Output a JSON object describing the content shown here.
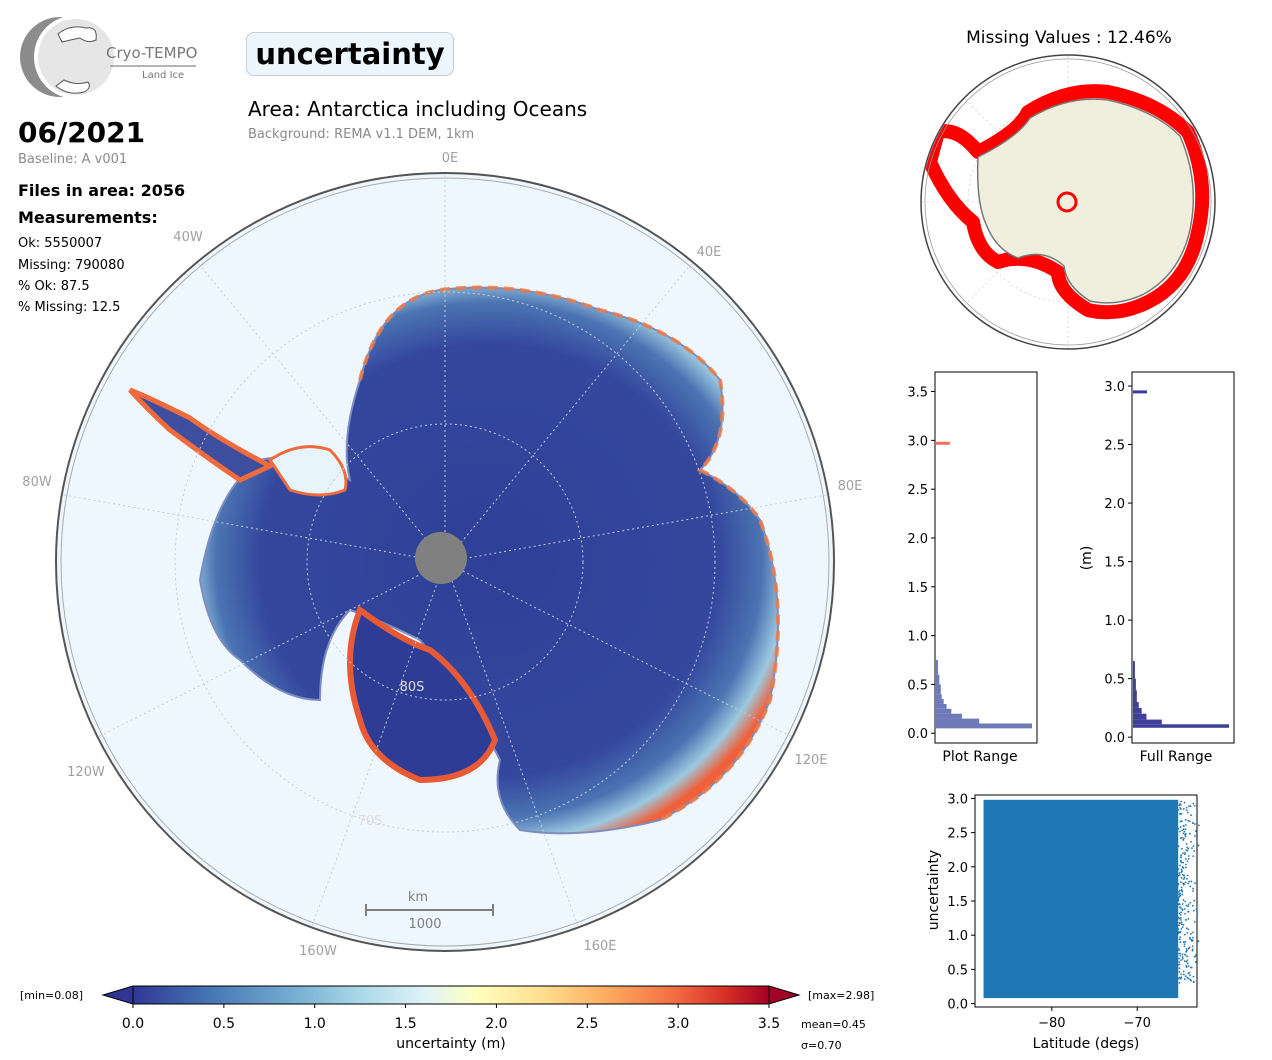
{
  "logo": {
    "name": "Cryo-TEMPO",
    "sub": "Land Ice"
  },
  "variable_title": "uncertainty",
  "area_title": "Area: Antarctica including Oceans",
  "background_note": "Background: REMA v1.1 DEM, 1km",
  "date": "06/2021",
  "baseline": "Baseline: A v001",
  "files_in_area": "Files in area: 2056",
  "measurements": {
    "heading": "Measurements:",
    "ok": "Ok: 5550007",
    "missing": "Missing: 790080",
    "pct_ok": "% Ok: 87.5",
    "pct_missing": "% Missing: 12.5"
  },
  "colors": {
    "low": "#313695",
    "high": "#a50026",
    "land": "#f0eedc",
    "missing": "#ff0000",
    "ocean": "#eef7fd"
  },
  "chart_data": [
    {
      "type": "heatmap",
      "name": "main-map",
      "longitude_labels": [
        "0E",
        "40E",
        "80E",
        "120E",
        "160E",
        "40W",
        "80W",
        "120W",
        "160W"
      ],
      "latitude_labels": [
        "80S",
        "70S"
      ],
      "scale_bar": {
        "unit": "km",
        "value": "1000"
      }
    },
    {
      "type": "heatmap",
      "name": "missing-values-map",
      "title": "Missing Values : 12.46%"
    },
    {
      "type": "bar",
      "name": "plot-range-histogram",
      "xlabel": "Plot Range",
      "ylim": [
        -0.1,
        3.7
      ],
      "yticks": [
        "0.0",
        "0.5",
        "1.0",
        "1.5",
        "2.0",
        "2.5",
        "3.0",
        "3.5"
      ],
      "bins": [
        {
          "y0": 0.05,
          "y1": 0.1,
          "v": 1.0
        },
        {
          "y0": 0.1,
          "y1": 0.15,
          "v": 0.45
        },
        {
          "y0": 0.15,
          "y1": 0.2,
          "v": 0.27
        },
        {
          "y0": 0.2,
          "y1": 0.25,
          "v": 0.16
        },
        {
          "y0": 0.25,
          "y1": 0.3,
          "v": 0.11
        },
        {
          "y0": 0.3,
          "y1": 0.35,
          "v": 0.08
        },
        {
          "y0": 0.35,
          "y1": 0.4,
          "v": 0.06
        },
        {
          "y0": 0.4,
          "y1": 0.5,
          "v": 0.05
        },
        {
          "y0": 0.5,
          "y1": 0.6,
          "v": 0.035
        },
        {
          "y0": 0.6,
          "y1": 0.75,
          "v": 0.02
        }
      ],
      "marker": {
        "y": 2.97,
        "color": "#f07060"
      }
    },
    {
      "type": "bar",
      "name": "full-range-histogram",
      "xlabel": "Full Range",
      "ylabel": "(m)",
      "ylim": [
        -0.05,
        3.12
      ],
      "yticks": [
        "0.0",
        "0.5",
        "1.0",
        "1.5",
        "2.0",
        "2.5",
        "3.0"
      ],
      "bins": [
        {
          "y0": 0.08,
          "y1": 0.11,
          "v": 1.0
        },
        {
          "y0": 0.11,
          "y1": 0.15,
          "v": 0.3
        },
        {
          "y0": 0.15,
          "y1": 0.2,
          "v": 0.14
        },
        {
          "y0": 0.2,
          "y1": 0.25,
          "v": 0.09
        },
        {
          "y0": 0.25,
          "y1": 0.3,
          "v": 0.06
        },
        {
          "y0": 0.3,
          "y1": 0.4,
          "v": 0.04
        },
        {
          "y0": 0.4,
          "y1": 0.5,
          "v": 0.03
        },
        {
          "y0": 0.5,
          "y1": 0.65,
          "v": 0.02
        }
      ],
      "marker": {
        "y": 2.95,
        "color": "#3b3b9a"
      }
    },
    {
      "type": "scatter",
      "name": "latitude-scatter",
      "xlabel": "Latitude (degs)",
      "ylabel": "uncertainty",
      "xlim": [
        -89,
        -63
      ],
      "ylim": [
        -0.05,
        3.05
      ],
      "xticks": [
        -80,
        -70
      ],
      "xtick_labels": [
        "−80",
        "−70"
      ],
      "yticks": [
        "0.0",
        "0.5",
        "1.0",
        "1.5",
        "2.0",
        "2.5",
        "3.0"
      ],
      "dense_region": {
        "x": [
          -88,
          -65.2
        ],
        "y": [
          0.08,
          2.98
        ]
      },
      "color": "#1f77b4"
    },
    {
      "type": "heatmap",
      "name": "colorbar",
      "label": "uncertainty (m)",
      "range": [
        0.0,
        3.5
      ],
      "ticks": [
        "0.0",
        "0.5",
        "1.0",
        "1.5",
        "2.0",
        "2.5",
        "3.0",
        "3.5"
      ],
      "min_label": "[min=0.08]",
      "max_label": "[max=2.98]",
      "mean_label": "mean=0.45",
      "sigma_label": "σ=0.70"
    }
  ]
}
